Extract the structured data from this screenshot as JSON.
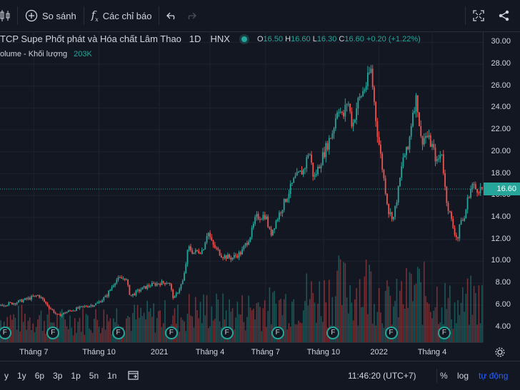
{
  "toolbar": {
    "compare_label": "So sánh",
    "indicators_label": "Các chỉ báo"
  },
  "legend": {
    "symbol_title": "CTCP Supe Phốt phát và Hóa chất Lâm Thao",
    "display_title": "TCP Supe Phốt phát và Hóa chất Lâm Thao",
    "interval": "1D",
    "exchange": "HNX",
    "o_label": "O",
    "o_value": "16.50",
    "h_label": "H",
    "h_value": "16.60",
    "l_label": "L",
    "l_value": "16.30",
    "c_label": "C",
    "c_value": "16.60",
    "change": "+0.20 (+1.22%)"
  },
  "volume": {
    "label": "olume - Khối lượng",
    "value": "203K"
  },
  "price_axis": {
    "ticks": [
      "30.00",
      "28.00",
      "26.00",
      "24.00",
      "22.00",
      "20.00",
      "18.00",
      "16.00",
      "14.00",
      "12.00",
      "10.00",
      "8.00",
      "6.00",
      "4.00"
    ],
    "tick_values": [
      30,
      28,
      26,
      24,
      22,
      20,
      18,
      16,
      14,
      12,
      10,
      8,
      6,
      4
    ],
    "current_price": "16.60",
    "current_value": 16.6
  },
  "time_axis": {
    "ticks": [
      "Tháng 7",
      "Tháng 10",
      "2021",
      "Tháng 4",
      "Tháng 7",
      "Tháng 10",
      "2022",
      "Tháng 4"
    ]
  },
  "bottom_bar": {
    "ranges": [
      "y",
      "1y",
      "6p",
      "3p",
      "1p",
      "5n",
      "1n"
    ],
    "clock": "11:46:20 (UTC+7)",
    "percent_label": "%",
    "log_label": "log",
    "auto_label": "tự động"
  },
  "colors": {
    "background": "#131722",
    "up": "#26a69a",
    "down": "#ef5350",
    "auto_accent": "#2962ff"
  },
  "chart_data": {
    "type": "candlestick",
    "title": "CTCP Supe Phốt phát và Hóa chất Lâm Thao",
    "interval": "1D",
    "exchange": "HNX",
    "ylim": [
      2.6,
      31
    ],
    "x_range": [
      0,
      100
    ],
    "x_ticks": [
      {
        "label": "Tháng 7",
        "x": 7
      },
      {
        "label": "Tháng 10",
        "x": 20.5
      },
      {
        "label": "2021",
        "x": 33
      },
      {
        "label": "Tháng 4",
        "x": 43.5
      },
      {
        "label": "Tháng 7",
        "x": 55
      },
      {
        "label": "Tháng 10",
        "x": 67
      },
      {
        "label": "2022",
        "x": 78.5
      },
      {
        "label": "Tháng 4",
        "x": 89.5
      }
    ],
    "price_path": [
      [
        0,
        6.0
      ],
      [
        3,
        6.2
      ],
      [
        6,
        6.6
      ],
      [
        8,
        6.9
      ],
      [
        10,
        5.9
      ],
      [
        12,
        5.0
      ],
      [
        14,
        5.4
      ],
      [
        17,
        5.8
      ],
      [
        20,
        6.1
      ],
      [
        22,
        6.8
      ],
      [
        24,
        8.3
      ],
      [
        26,
        8.5
      ],
      [
        27,
        6.8
      ],
      [
        29,
        7.4
      ],
      [
        31,
        7.8
      ],
      [
        33,
        8.0
      ],
      [
        35,
        8.1
      ],
      [
        36,
        6.5
      ],
      [
        38,
        8.3
      ],
      [
        39,
        11.3
      ],
      [
        40,
        10.8
      ],
      [
        42,
        11.0
      ],
      [
        43,
        12.8
      ],
      [
        44,
        11.5
      ],
      [
        46,
        10.5
      ],
      [
        48,
        10.3
      ],
      [
        50,
        10.8
      ],
      [
        52,
        12.5
      ],
      [
        53,
        14.0
      ],
      [
        55,
        14.2
      ],
      [
        56,
        12.4
      ],
      [
        57,
        13.5
      ],
      [
        59,
        15.5
      ],
      [
        61,
        17.5
      ],
      [
        63,
        18.4
      ],
      [
        64,
        20.2
      ],
      [
        65,
        17.5
      ],
      [
        67,
        19.8
      ],
      [
        69,
        22.0
      ],
      [
        70,
        24.3
      ],
      [
        71,
        23.0
      ],
      [
        72,
        24.8
      ],
      [
        73,
        22.3
      ],
      [
        74,
        24.4
      ],
      [
        76,
        26.3
      ],
      [
        76.8,
        27.6
      ],
      [
        78,
        22.3
      ],
      [
        79.5,
        17.5
      ],
      [
        80.5,
        14.5
      ],
      [
        81.5,
        14.0
      ],
      [
        82.5,
        16.5
      ],
      [
        83.5,
        19.5
      ],
      [
        84.5,
        20.2
      ],
      [
        85.5,
        23.8
      ],
      [
        86.3,
        25.0
      ],
      [
        87.2,
        21.0
      ],
      [
        88.3,
        21.5
      ],
      [
        89.5,
        20.5
      ],
      [
        90.5,
        19.0
      ],
      [
        91.5,
        20.0
      ],
      [
        92.3,
        16.0
      ],
      [
        93,
        14.6
      ],
      [
        94,
        12.8
      ],
      [
        94.8,
        12.0
      ],
      [
        95.5,
        14.0
      ],
      [
        96,
        13.5
      ],
      [
        97,
        16.0
      ],
      [
        97.8,
        17.0
      ],
      [
        98.5,
        16.6
      ]
    ],
    "volume_markers_x": [
      1,
      11,
      24.5,
      35.5,
      47,
      57.5,
      69,
      81,
      92
    ]
  }
}
